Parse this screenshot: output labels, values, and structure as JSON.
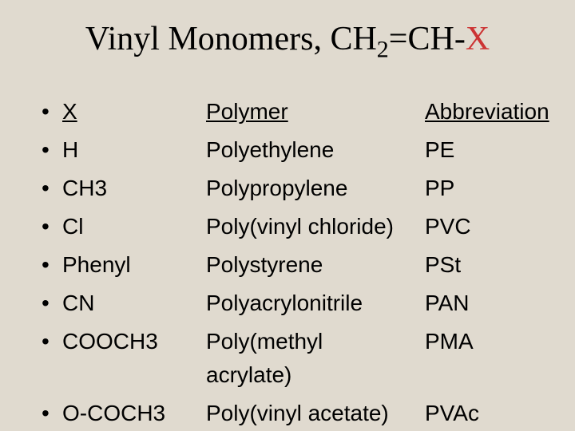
{
  "title_prefix": "Vinyl Monomers, CH",
  "title_sub": "2",
  "title_middle": "=CH-",
  "title_x": "X",
  "colors": {
    "background": "#e0dacf",
    "text": "#000000",
    "highlight": "#cc3333"
  },
  "fonts": {
    "title_family": "Times New Roman",
    "title_size": 42,
    "body_family": "Arial",
    "body_size": 28
  },
  "headers": {
    "x": "X",
    "polymer": "Polymer",
    "abbrev": "Abbreviation"
  },
  "rows": [
    {
      "x": "H",
      "polymer": "Polyethylene",
      "abbrev": "PE"
    },
    {
      "x": "CH3",
      "polymer": "Polypropylene",
      "abbrev": "PP"
    },
    {
      "x": "Cl",
      "polymer": "Poly(vinyl chloride)",
      "abbrev": "PVC"
    },
    {
      "x": "Phenyl",
      "polymer": "Polystyrene",
      "abbrev": "PSt"
    },
    {
      "x": "CN",
      "polymer": "Polyacrylonitrile",
      "abbrev": "PAN"
    },
    {
      "x": "COOCH3",
      "polymer": "Poly(methyl acrylate)",
      "abbrev": "PMA"
    },
    {
      "x": "O-COCH3",
      "polymer": "Poly(vinyl acetate)",
      "abbrev": "PVAc"
    }
  ]
}
